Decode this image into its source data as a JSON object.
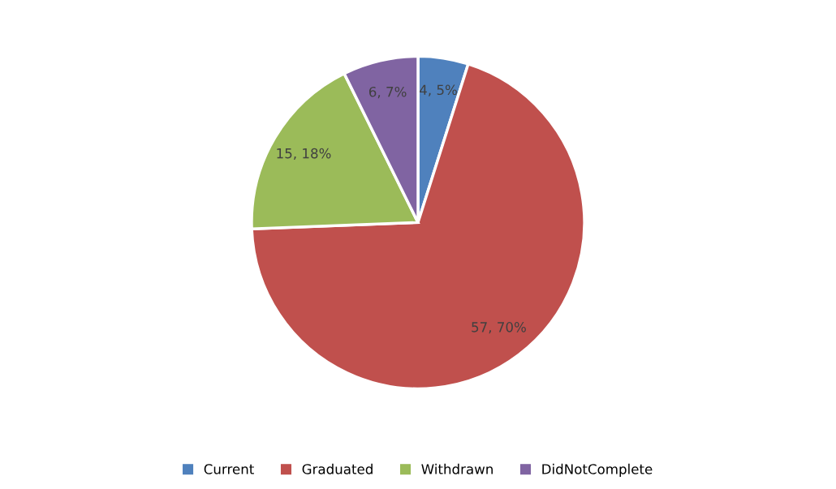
{
  "chart_data": {
    "type": "pie",
    "categories": [
      "Current",
      "Graduated",
      "Withdrawn",
      "DidNotComplete"
    ],
    "values": [
      4,
      57,
      15,
      6
    ],
    "colors": [
      "#4f81bd",
      "#c0504d",
      "#9bbb59",
      "#8064a2"
    ],
    "value_labels": [
      "4, 5%",
      "57, 70%",
      "15, 18%",
      "6, 7%"
    ],
    "legend": "bottom"
  }
}
